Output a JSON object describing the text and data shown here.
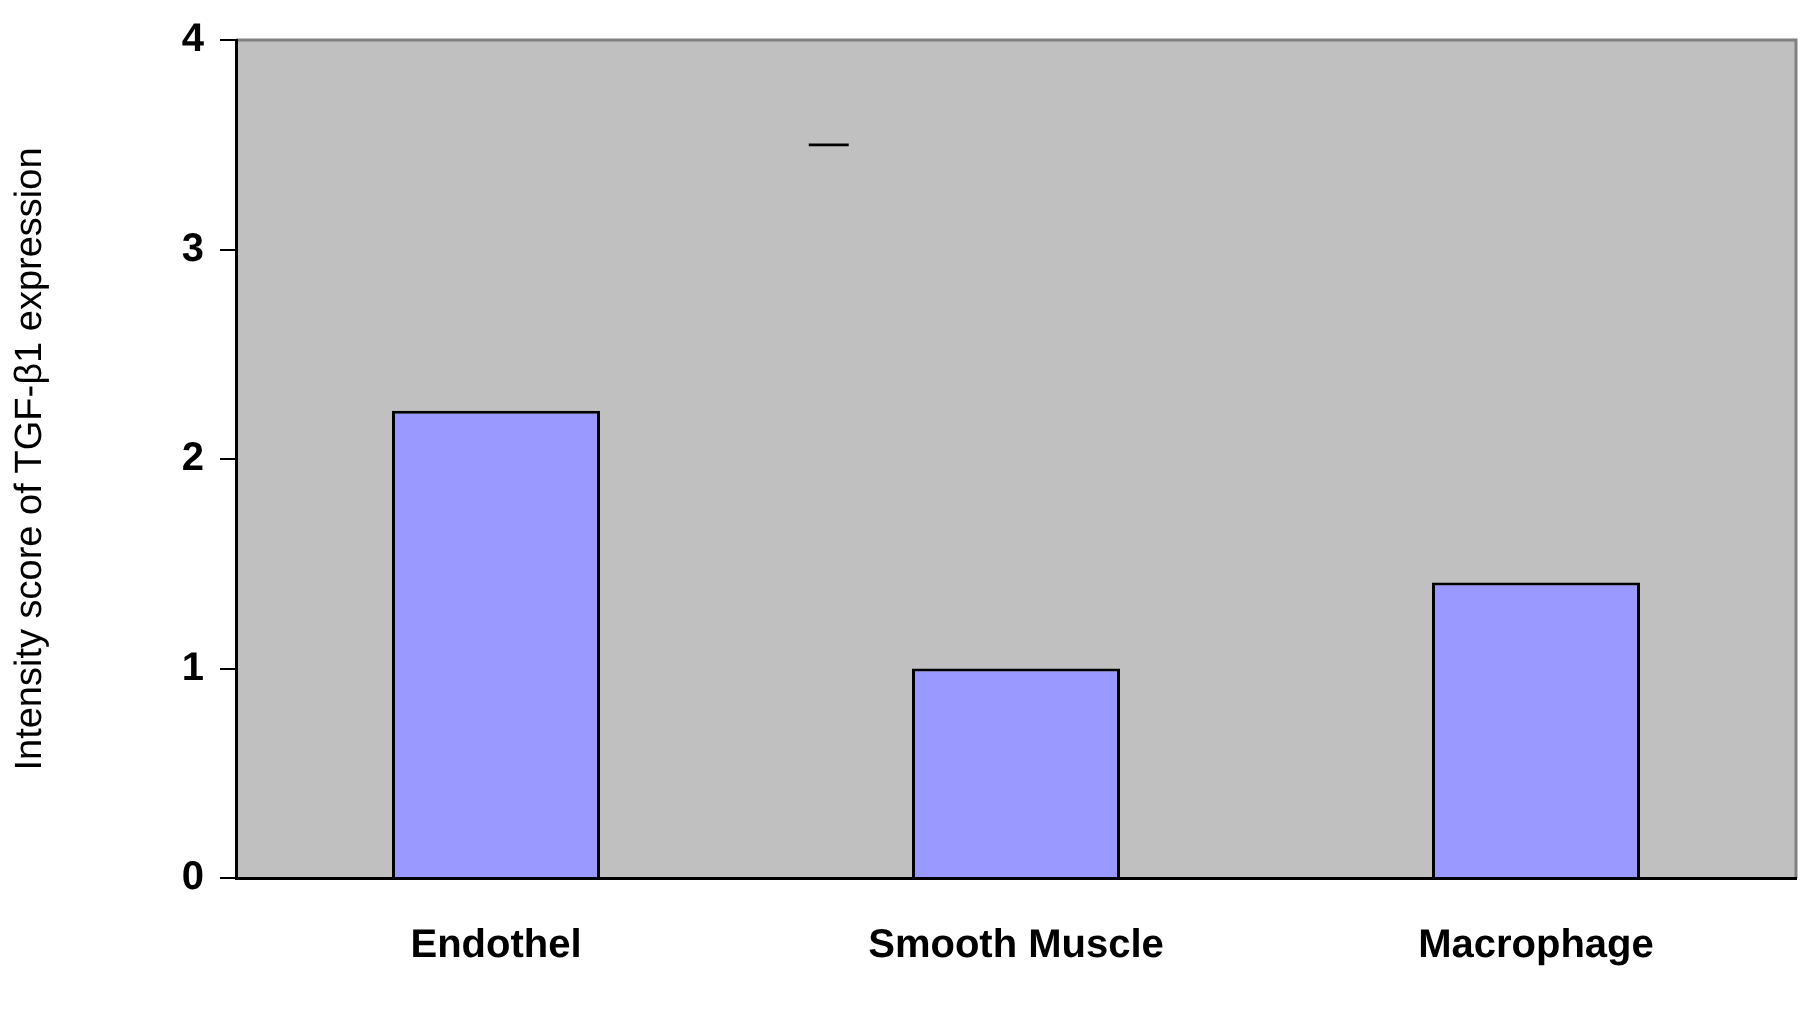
{
  "chart_data": {
    "type": "bar",
    "ylabel": "Intensity score of TGF-β1 expression",
    "categories": [
      "Endothel",
      "Smooth Muscle",
      "Macrophage"
    ],
    "values": [
      2.23,
      1.0,
      1.41
    ],
    "color": "#9999ff",
    "ylim": [
      0,
      4
    ],
    "yticks": [
      0,
      1,
      2,
      3,
      4
    ],
    "grid": false,
    "legend": false,
    "annotations": [
      "—"
    ]
  }
}
